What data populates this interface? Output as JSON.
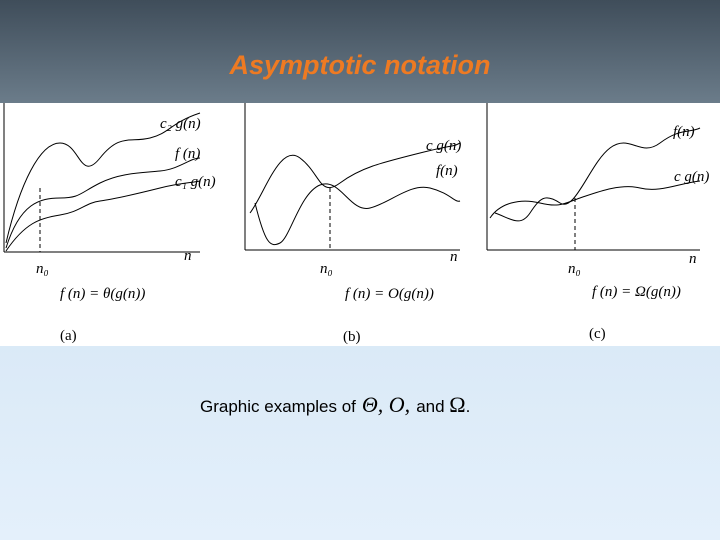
{
  "header": {
    "title": "Asymptotic notation"
  },
  "panels": [
    {
      "labels": [
        "c₂ g(n)",
        "f (n)",
        "c₁ g(n)",
        "n",
        "n₀"
      ],
      "formula": "f (n) = θ(g(n))",
      "tag": "(a)"
    },
    {
      "labels": [
        "c g(n)",
        "f(n)",
        "n",
        "n₀"
      ],
      "formula": "f (n) = O(g(n))",
      "tag": "(b)"
    },
    {
      "labels": [
        "f(n)",
        "c g(n)",
        "n",
        "n₀"
      ],
      "formula": "f (n) = Ω(g(n))",
      "tag": "(c)"
    }
  ],
  "caption": {
    "text": "Graphic examples of",
    "symbols": "Θ, O,",
    "and": "and",
    "last": "Ω",
    "end": "."
  }
}
